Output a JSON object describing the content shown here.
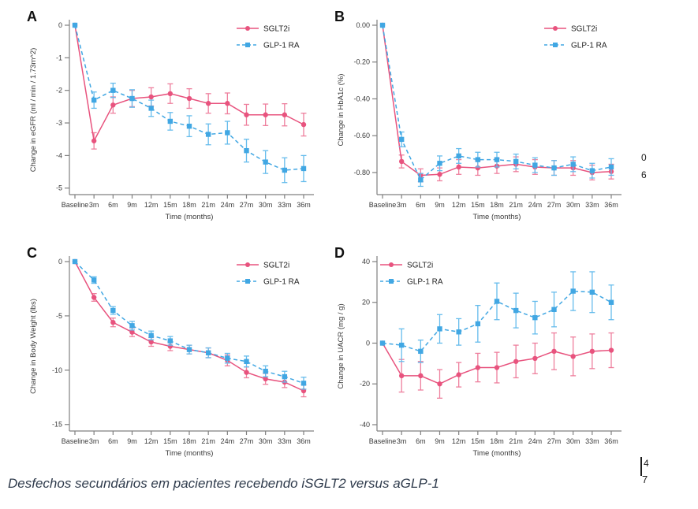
{
  "figure": {
    "caption": "Desfechos secundários em pacientes recebendo iSGLT2 versus aGLP-1"
  },
  "colors": {
    "sglt2i": "#e8537e",
    "sglt2i_err": "#ee7f9d",
    "glp1": "#41a7e3",
    "glp1_err": "#66bcec",
    "axis": "#808080",
    "tick_text": "#3a3a3a",
    "legend_text": "#222222",
    "panel_label": "#111111"
  },
  "edge_artifacts": {
    "clipped_char_1": "0",
    "clipped_char_2": "6",
    "clipped_char_3": "4",
    "clipped_char_4": "7"
  },
  "chart_data": [
    {
      "type": "line",
      "panel_label": "A",
      "ylabel": "Change in eGFR (ml / min / 1.73m^2)",
      "xlabel": "Time (months)",
      "categories": [
        "Baseline",
        "3m",
        "6m",
        "9m",
        "12m",
        "15m",
        "18m",
        "21m",
        "24m",
        "27m",
        "30m",
        "33m",
        "36m"
      ],
      "ytick_values": [
        0,
        -1,
        -2,
        -3,
        -4,
        -5
      ],
      "ytick_labels": [
        "0",
        "-1",
        "-2",
        "-3",
        "-4",
        "-5"
      ],
      "ylim": [
        -5.2,
        0
      ],
      "legend_pos": "top-right",
      "grid": false,
      "series": [
        {
          "name": "SGLT2i",
          "marker": "circle",
          "line": "solid",
          "color_key": "sglt2i",
          "values": [
            0,
            -3.55,
            -2.45,
            -2.25,
            -2.2,
            -2.1,
            -2.25,
            -2.4,
            -2.4,
            -2.75,
            -2.75,
            -2.75,
            -3.05
          ],
          "errors": [
            0,
            0.25,
            0.25,
            0.25,
            0.28,
            0.3,
            0.3,
            0.3,
            0.32,
            0.32,
            0.33,
            0.34,
            0.35
          ]
        },
        {
          "name": "GLP-1 RA",
          "marker": "square",
          "line": "dashed",
          "color_key": "glp1",
          "values": [
            0,
            -2.3,
            -2.0,
            -2.25,
            -2.55,
            -2.95,
            -3.1,
            -3.35,
            -3.3,
            -3.85,
            -4.2,
            -4.45,
            -4.4
          ],
          "errors": [
            0,
            0.25,
            0.22,
            0.27,
            0.25,
            0.27,
            0.32,
            0.32,
            0.35,
            0.35,
            0.35,
            0.38,
            0.4
          ]
        }
      ]
    },
    {
      "type": "line",
      "panel_label": "B",
      "ylabel": "Change in HbA1c (%)",
      "xlabel": "Time (months)",
      "categories": [
        "Baseline",
        "3m",
        "6m",
        "9m",
        "12m",
        "15m",
        "18m",
        "21m",
        "24m",
        "27m",
        "30m",
        "33m",
        "36m"
      ],
      "ytick_values": [
        0,
        -0.2,
        -0.4,
        -0.6,
        -0.8
      ],
      "ytick_labels": [
        "0.00",
        "-0.20",
        "-0.40",
        "-0.60",
        "-0.80"
      ],
      "ylim": [
        -0.92,
        0
      ],
      "legend_pos": "top-right",
      "grid": false,
      "series": [
        {
          "name": "SGLT2i",
          "marker": "circle",
          "line": "solid",
          "color_key": "sglt2i",
          "values": [
            0,
            -0.74,
            -0.815,
            -0.81,
            -0.77,
            -0.775,
            -0.765,
            -0.755,
            -0.77,
            -0.775,
            -0.775,
            -0.8,
            -0.795
          ],
          "errors": [
            0,
            0.035,
            0.035,
            0.035,
            0.04,
            0.04,
            0.04,
            0.04,
            0.04,
            0.04,
            0.04,
            0.04,
            0.04
          ]
        },
        {
          "name": "GLP-1 RA",
          "marker": "square",
          "line": "dashed",
          "color_key": "glp1",
          "values": [
            0,
            -0.62,
            -0.84,
            -0.75,
            -0.71,
            -0.73,
            -0.73,
            -0.74,
            -0.76,
            -0.775,
            -0.755,
            -0.79,
            -0.77
          ],
          "errors": [
            0,
            0.04,
            0.035,
            0.04,
            0.04,
            0.04,
            0.04,
            0.04,
            0.04,
            0.04,
            0.04,
            0.04,
            0.045
          ]
        }
      ]
    },
    {
      "type": "line",
      "panel_label": "C",
      "ylabel": "Change in Body Weight (lbs)",
      "xlabel": "Time (months)",
      "categories": [
        "Baseline",
        "3m",
        "6m",
        "9m",
        "12m",
        "15m",
        "18m",
        "21m",
        "24m",
        "27m",
        "30m",
        "33m",
        "36m"
      ],
      "ytick_values": [
        0,
        -5,
        -10,
        -15
      ],
      "ytick_labels": [
        "0",
        "-5",
        "-10",
        "-15"
      ],
      "ylim": [
        -15.6,
        0
      ],
      "legend_pos": "top-right",
      "grid": false,
      "series": [
        {
          "name": "SGLT2i",
          "marker": "circle",
          "line": "solid",
          "color_key": "sglt2i",
          "values": [
            0,
            -3.3,
            -5.6,
            -6.5,
            -7.4,
            -7.8,
            -8.1,
            -8.4,
            -9.1,
            -10.2,
            -10.8,
            -11.1,
            -11.9
          ],
          "errors": [
            0,
            0.35,
            0.4,
            0.4,
            0.4,
            0.4,
            0.4,
            0.45,
            0.5,
            0.5,
            0.5,
            0.5,
            0.55
          ]
        },
        {
          "name": "GLP-1 RA",
          "marker": "square",
          "line": "dashed",
          "color_key": "glp1",
          "values": [
            0,
            -1.7,
            -4.5,
            -5.9,
            -6.8,
            -7.3,
            -8.1,
            -8.4,
            -8.9,
            -9.2,
            -10.1,
            -10.6,
            -11.2
          ],
          "errors": [
            0,
            0.3,
            0.35,
            0.4,
            0.4,
            0.4,
            0.4,
            0.45,
            0.45,
            0.5,
            0.5,
            0.5,
            0.55
          ]
        }
      ]
    },
    {
      "type": "line",
      "panel_label": "D",
      "ylabel": "Change in UACR (mg / g)",
      "xlabel": "Time (months)",
      "categories": [
        "Baseline",
        "3m",
        "6m",
        "9m",
        "12m",
        "15m",
        "18m",
        "21m",
        "24m",
        "27m",
        "30m",
        "33m",
        "36m"
      ],
      "ytick_values": [
        40,
        20,
        0,
        -20,
        -40
      ],
      "ytick_labels": [
        "40",
        "20",
        "0",
        "-20",
        "-40"
      ],
      "ylim": [
        -43.1,
        40
      ],
      "legend_pos": "top-left",
      "grid": false,
      "series": [
        {
          "name": "SGLT2i",
          "marker": "circle",
          "line": "solid",
          "color_key": "sglt2i",
          "values": [
            0,
            -16,
            -16,
            -20,
            -15.5,
            -12,
            -12,
            -9,
            -7.5,
            -4,
            -6.5,
            -4,
            -3.5
          ],
          "errors": [
            0,
            8,
            7,
            7,
            6,
            7,
            7.5,
            8,
            7.5,
            9,
            9.5,
            8.5,
            8.5
          ]
        },
        {
          "name": "GLP-1 RA",
          "marker": "square",
          "line": "dashed",
          "color_key": "glp1",
          "values": [
            0,
            -1,
            -4,
            7,
            5.5,
            9.5,
            20.5,
            16,
            12.5,
            16.5,
            25.5,
            25,
            20
          ],
          "errors": [
            0,
            8,
            5.5,
            7,
            6.5,
            9,
            9,
            8.5,
            8,
            8.5,
            9.5,
            10,
            8.5
          ]
        }
      ]
    }
  ]
}
